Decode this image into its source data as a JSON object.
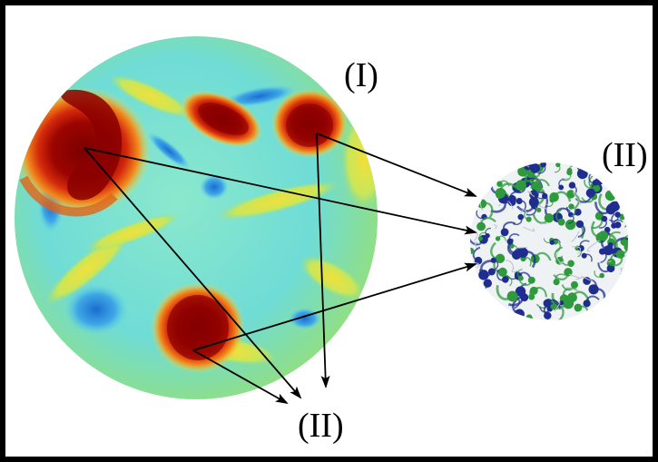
{
  "labels": {
    "large_circle": "(I)",
    "small_circle": "(II)",
    "bottom": "(II)"
  },
  "colors": {
    "background_frame": "#000000",
    "canvas": "#ffffff",
    "field_base": "#7ce3d0",
    "field_cyan": "#3fc7e6",
    "field_blue": "#1d7fd8",
    "field_yellow": "#f0e63a",
    "field_orange": "#f28b1d",
    "field_red": "#d21a0a",
    "field_darkred": "#8a0000",
    "vortex_green": "#2e9a3c",
    "vortex_navy": "#1f2d8f",
    "arrow": "#000000"
  },
  "icons": {
    "arrowhead": "arrowhead-icon"
  }
}
